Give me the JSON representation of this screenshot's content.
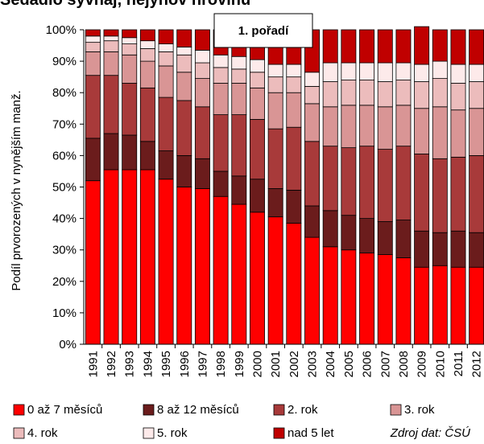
{
  "cut_title": "Sedadlo šyvnaj, nejynov hrovinu",
  "panel_title": "1. pořadí",
  "source_note": "Zdroj dat: ČSÚ",
  "chart_data": {
    "type": "bar",
    "stacked": true,
    "percent": true,
    "ylabel": "Podíl prvorozených v nynějším manž.",
    "ylim": [
      0,
      100
    ],
    "yticks": [
      "0%",
      "10%",
      "20%",
      "30%",
      "40%",
      "50%",
      "60%",
      "70%",
      "80%",
      "90%",
      "100%"
    ],
    "categories": [
      "1991",
      "1992",
      "1993",
      "1994",
      "1995",
      "1996",
      "1997",
      "1998",
      "1999",
      "2000",
      "2001",
      "2002",
      "2003",
      "2004",
      "2005",
      "2006",
      "2007",
      "2008",
      "2009",
      "2010",
      "2011",
      "2012"
    ],
    "legend_position": "bottom",
    "series": [
      {
        "name": "0 až 7 měsíců",
        "color": "#ff0000",
        "values": [
          52,
          55.5,
          55.5,
          55.5,
          52.5,
          50,
          49.5,
          47,
          44.5,
          42,
          40.5,
          38.5,
          34,
          31,
          30,
          29,
          28.5,
          27.5,
          24.5,
          25,
          24.5,
          24.5
        ]
      },
      {
        "name": "8 až 12 měsíců",
        "color": "#6b1c1c",
        "values": [
          13.5,
          11.5,
          11,
          9,
          9,
          10,
          9.5,
          8,
          9,
          10.5,
          9,
          10.5,
          10,
          11.5,
          11,
          11,
          10.5,
          12,
          11.5,
          10.5,
          11.5,
          11
        ]
      },
      {
        "name": "2. rok",
        "color": "#a83a3a",
        "values": [
          20,
          18.5,
          16.5,
          17,
          17,
          17.5,
          16.5,
          18,
          19.5,
          19,
          19,
          20,
          20.5,
          20.5,
          21.5,
          23,
          23,
          23.5,
          24.5,
          23.5,
          23.5,
          24.5
        ]
      },
      {
        "name": "3. rok",
        "color": "#d99595",
        "values": [
          7.5,
          7.5,
          9,
          8.5,
          10,
          9,
          9,
          10,
          10,
          10,
          11.5,
          11,
          12,
          12.5,
          13.5,
          13,
          13.5,
          13,
          14.5,
          16.5,
          15,
          15
        ]
      },
      {
        "name": "4. rok",
        "color": "#ecbcbc",
        "values": [
          3,
          3.5,
          3.5,
          4,
          4.5,
          5.5,
          5,
          5,
          4.5,
          5,
          5,
          5,
          5.5,
          8,
          8,
          8,
          8,
          8,
          8.5,
          9,
          8.5,
          8.5
        ]
      },
      {
        "name": "5. rok",
        "color": "#fdeaea",
        "values": [
          2,
          1.5,
          2,
          2.5,
          2.5,
          2.5,
          4,
          4,
          4,
          4,
          4,
          4,
          4.5,
          6,
          5.5,
          5.5,
          6,
          5.5,
          5.5,
          5.5,
          6,
          5.5
        ]
      },
      {
        "name": "nad 5 let",
        "color": "#c00000",
        "values": [
          2,
          2,
          2.5,
          3.5,
          4.5,
          5.5,
          6.5,
          8,
          8.5,
          9.5,
          10.5,
          11,
          13.5,
          10.5,
          10.5,
          10.5,
          10.5,
          10.5,
          12,
          10,
          11,
          11
        ]
      }
    ]
  }
}
